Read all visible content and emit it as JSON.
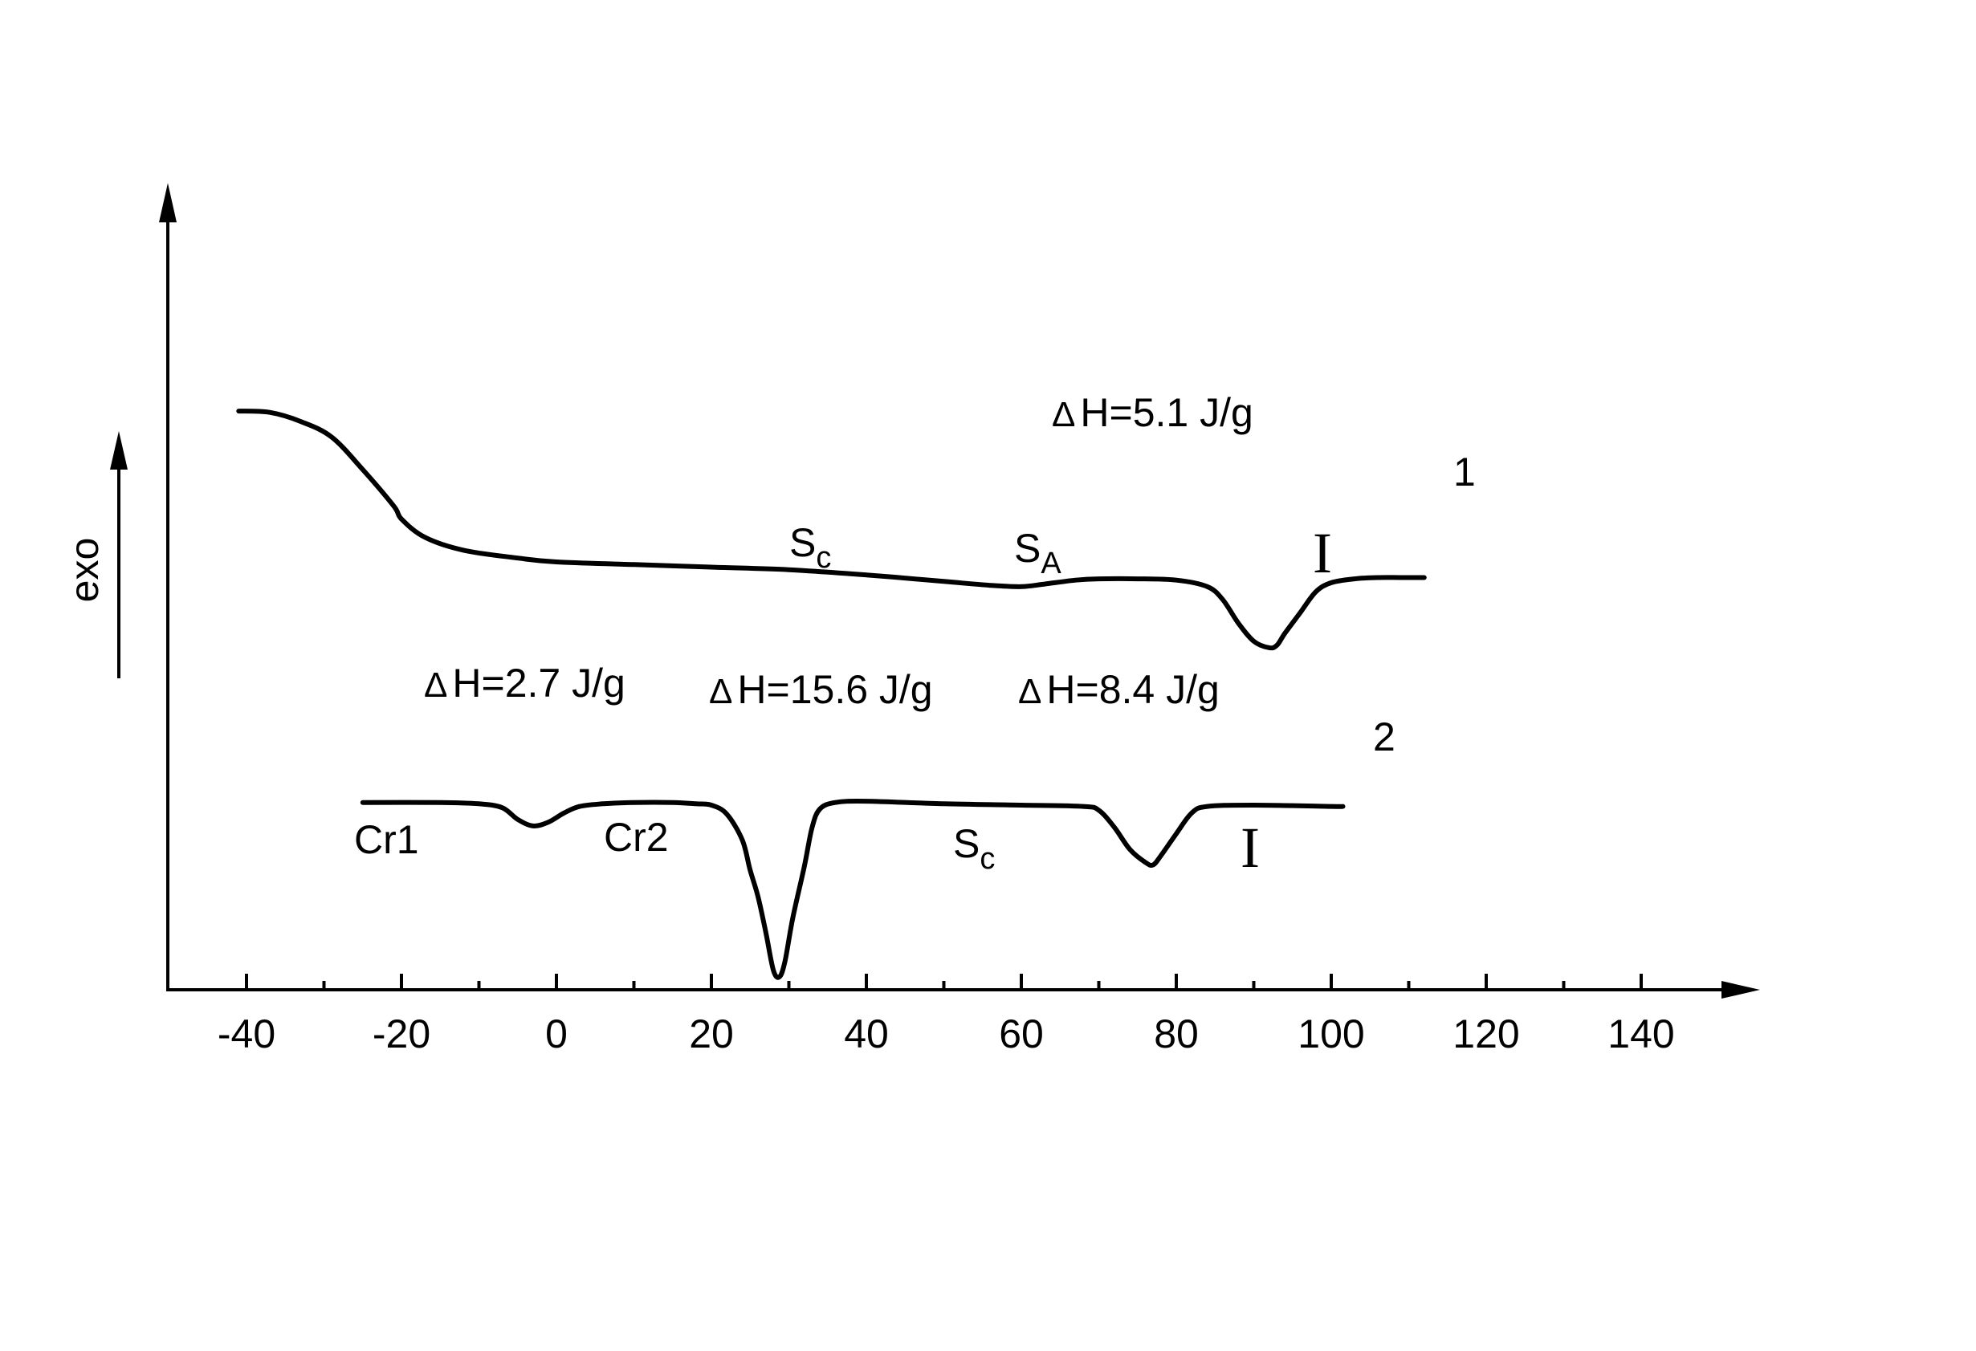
{
  "chart_data": {
    "type": "line",
    "y_axis_label": "exo",
    "x_ticks": [
      "-40",
      "-20",
      "0",
      "20",
      "40",
      "60",
      "80",
      "100",
      "120",
      "140"
    ],
    "xlim": [
      -50,
      155
    ],
    "grid": false,
    "series": [
      {
        "name": "1",
        "x": [
          -41,
          -37,
          -33,
          -29,
          -25,
          -21,
          -20,
          -17,
          -12,
          -5,
          0,
          10,
          20,
          30,
          40,
          50,
          56,
          60,
          63,
          67,
          70,
          75,
          80,
          84,
          86,
          88,
          90,
          92,
          93,
          94,
          96,
          98,
          100,
          103,
          106,
          109,
          112
        ],
        "y": [
          4.45,
          4.44,
          4.37,
          4.25,
          4.0,
          3.72,
          3.62,
          3.48,
          3.38,
          3.32,
          3.29,
          3.27,
          3.25,
          3.23,
          3.19,
          3.14,
          3.11,
          3.1,
          3.12,
          3.15,
          3.16,
          3.16,
          3.15,
          3.1,
          3.0,
          2.82,
          2.68,
          2.63,
          2.65,
          2.74,
          2.9,
          3.06,
          3.13,
          3.16,
          3.17,
          3.17,
          3.17
        ]
      },
      {
        "name": "2",
        "x": [
          -25,
          -15,
          -10,
          -7,
          -5,
          -3,
          -1,
          1,
          3,
          6,
          10,
          15,
          18,
          20,
          22,
          24,
          25,
          26,
          27,
          28,
          28.8,
          29.5,
          30.5,
          32,
          33,
          34,
          36,
          40,
          50,
          60,
          68,
          70,
          72,
          74,
          76,
          77,
          78,
          80,
          82,
          84,
          90,
          100,
          101.5
        ],
        "y": [
          1.44,
          1.44,
          1.43,
          1.4,
          1.31,
          1.26,
          1.29,
          1.36,
          1.41,
          1.43,
          1.44,
          1.44,
          1.43,
          1.42,
          1.35,
          1.15,
          0.92,
          0.72,
          0.45,
          0.15,
          0.1,
          0.22,
          0.55,
          0.95,
          1.25,
          1.39,
          1.44,
          1.45,
          1.43,
          1.42,
          1.41,
          1.38,
          1.25,
          1.08,
          0.98,
          0.96,
          1.03,
          1.2,
          1.36,
          1.41,
          1.42,
          1.41,
          1.41
        ]
      }
    ],
    "annotations": [
      {
        "id": "dh1",
        "delta": "Δ",
        "text": "H=5.1  J/g"
      },
      {
        "id": "curve1-label",
        "text": "1"
      },
      {
        "id": "sc1",
        "main": "S",
        "sub": "c"
      },
      {
        "id": "sa1",
        "main": "S",
        "sub": "A"
      },
      {
        "id": "i1",
        "text": "I"
      },
      {
        "id": "dh2",
        "delta": "Δ",
        "text": "H=2.7  J/g"
      },
      {
        "id": "dh3",
        "delta": "Δ",
        "text": "H=15.6  J/g"
      },
      {
        "id": "dh4",
        "delta": "Δ",
        "text": "H=8.4  J/g"
      },
      {
        "id": "curve2-label",
        "text": "2"
      },
      {
        "id": "cr1",
        "text": "Cr1"
      },
      {
        "id": "cr2",
        "text": "Cr2"
      },
      {
        "id": "sc2",
        "main": "S",
        "sub": "c"
      },
      {
        "id": "i2",
        "text": "I"
      }
    ]
  }
}
